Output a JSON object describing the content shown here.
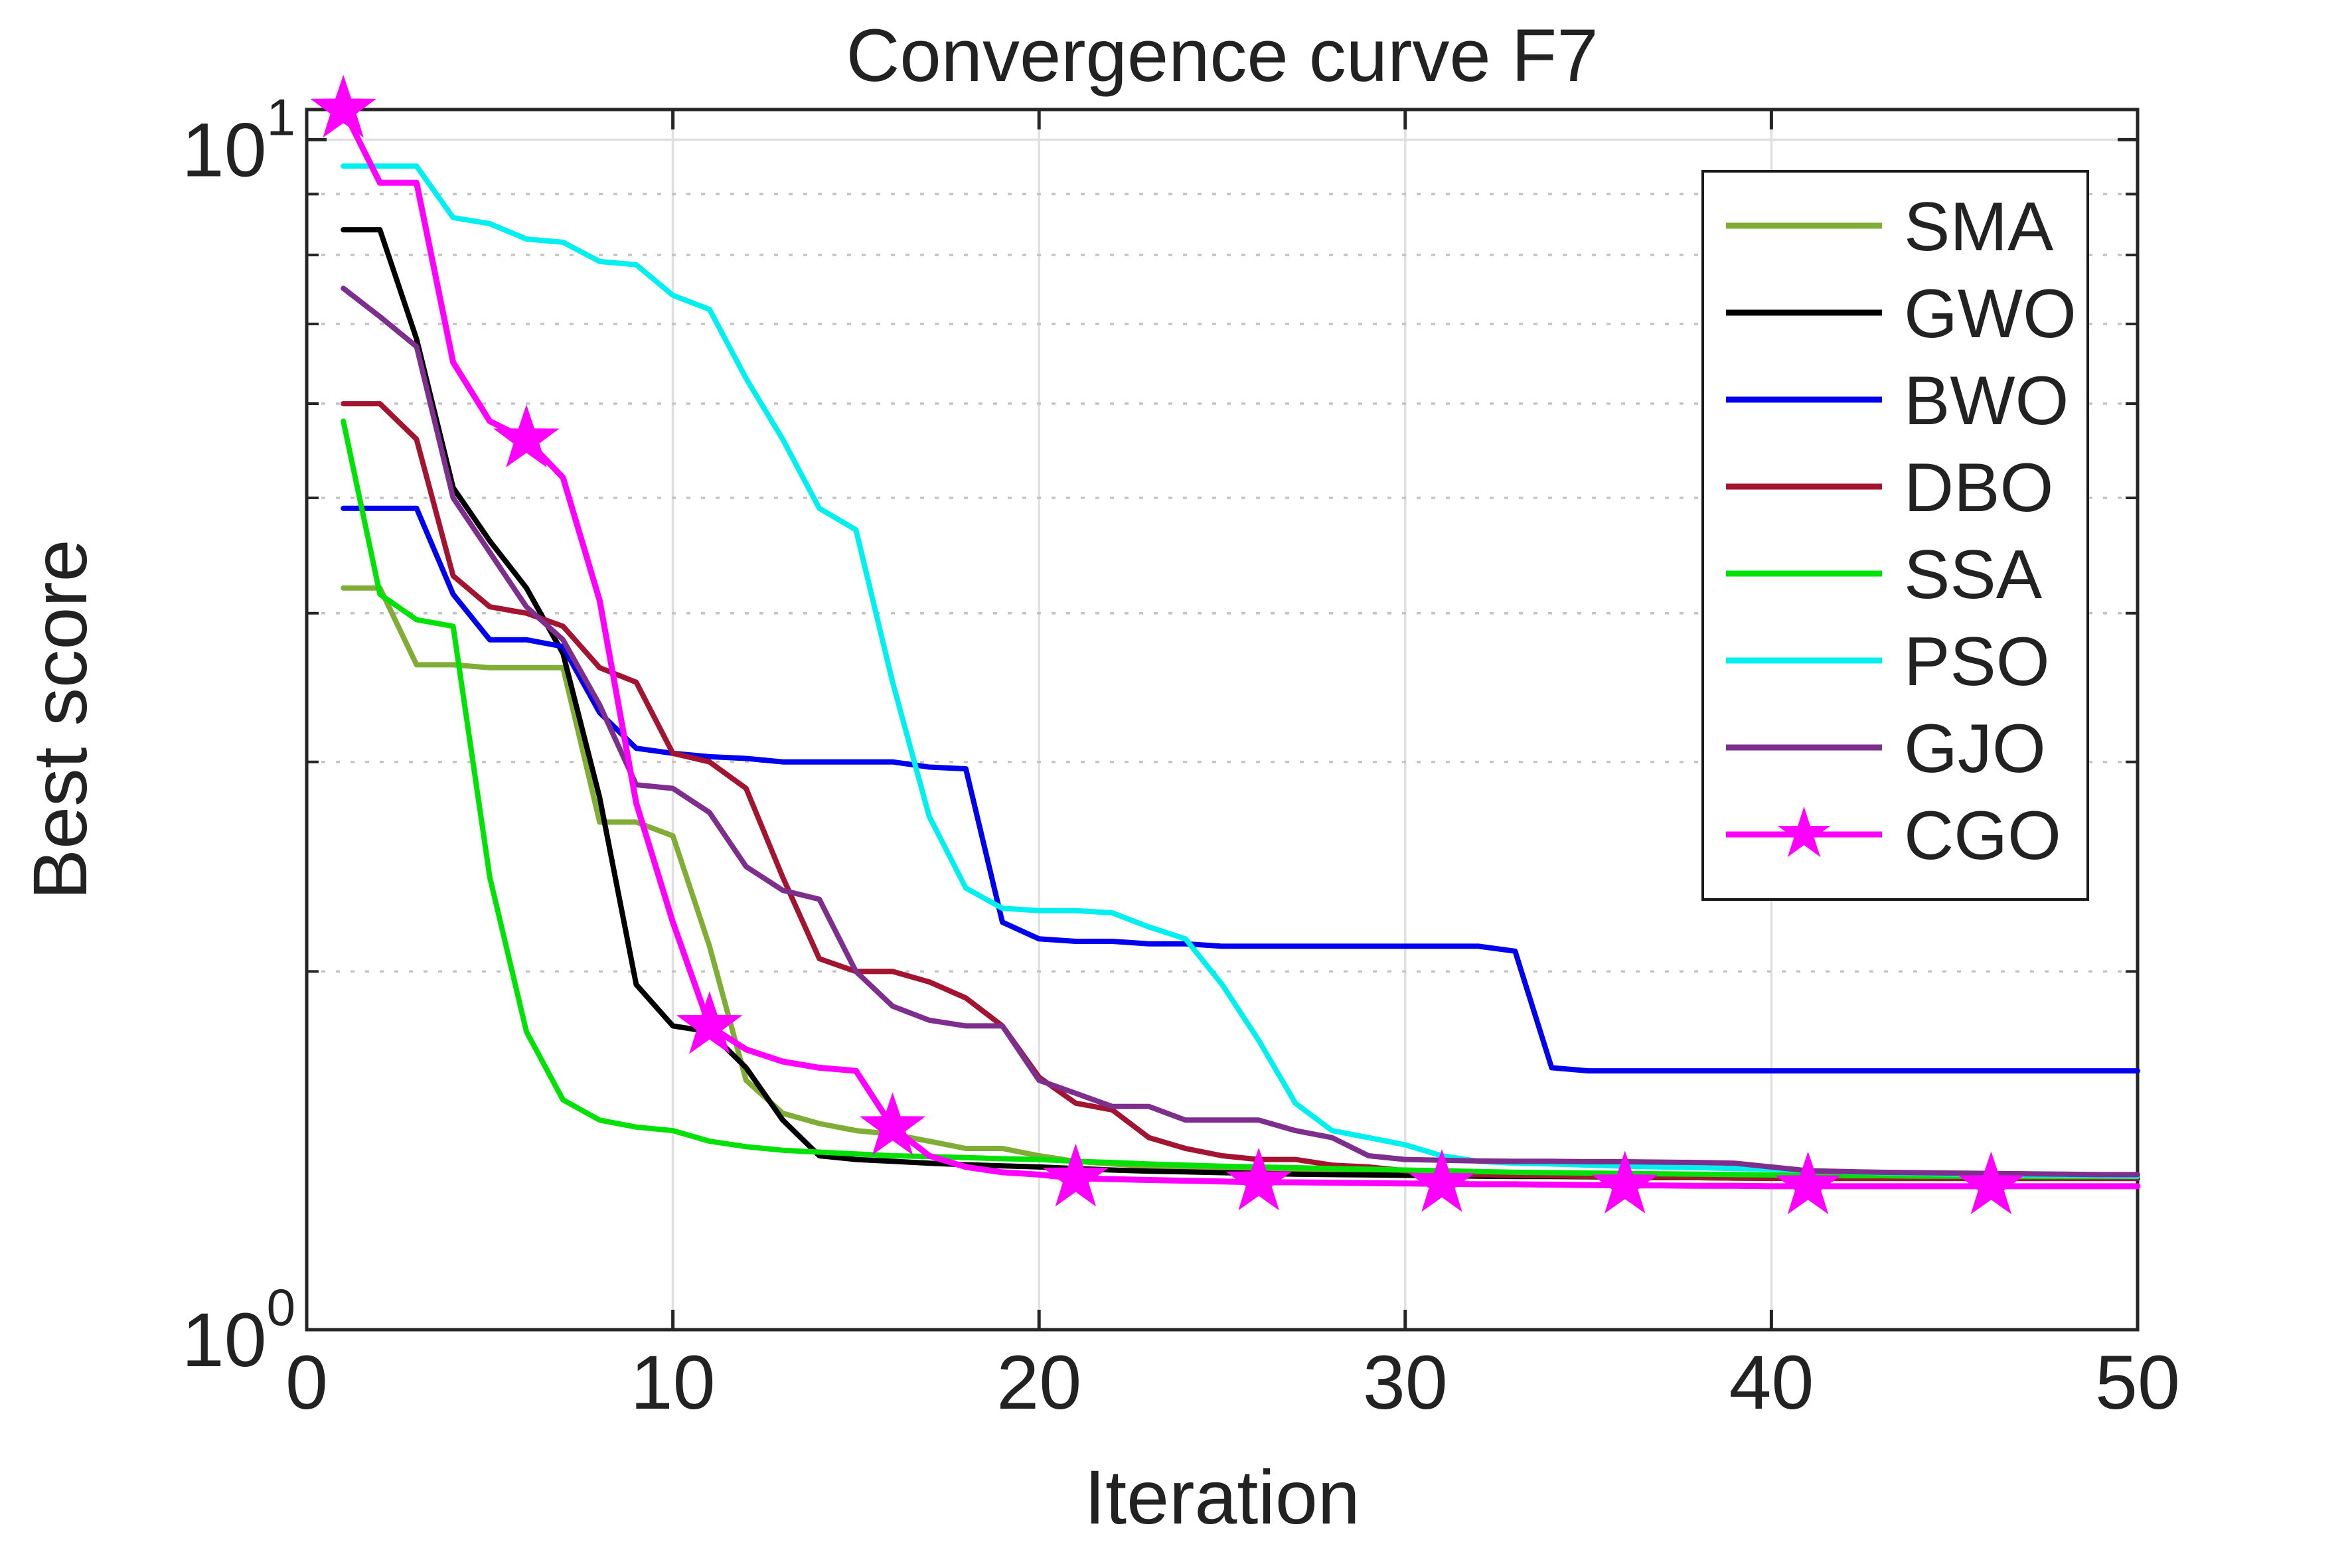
{
  "title": "Convergence curve F7",
  "axes": {
    "xlabel": "Iteration",
    "ylabel": "Best score",
    "x_ticks": [
      0,
      10,
      20,
      30,
      40,
      50
    ],
    "y_tick_labels": [
      {
        "base": "10",
        "exp": "0",
        "value": 1
      },
      {
        "base": "10",
        "exp": "1",
        "value": 10
      }
    ]
  },
  "legend": {
    "entries": [
      {
        "label": "SMA",
        "color": "#7FAD35",
        "marker": "none"
      },
      {
        "label": "GWO",
        "color": "#000000",
        "marker": "none"
      },
      {
        "label": "BWO",
        "color": "#0000EE",
        "marker": "none"
      },
      {
        "label": "DBO",
        "color": "#A2142F",
        "marker": "none"
      },
      {
        "label": "SSA",
        "color": "#00E106",
        "marker": "none"
      },
      {
        "label": "PSO",
        "color": "#00F0F0",
        "marker": "none"
      },
      {
        "label": "GJO",
        "color": "#7E2F8E",
        "marker": "none"
      },
      {
        "label": "CGO",
        "color": "#FF00FF",
        "marker": "star"
      }
    ]
  },
  "chart_data": {
    "type": "line",
    "title": "Convergence curve F7",
    "xlabel": "Iteration",
    "ylabel": "Best score",
    "xlim": [
      0,
      50
    ],
    "ylim": [
      1,
      10.6
    ],
    "yscale": "log",
    "x_first": 1,
    "x_last": 50,
    "grid": {
      "vertical_major": [
        10,
        20,
        30,
        40
      ],
      "horizontal_major": [
        10
      ],
      "horizontal_minor": [
        2,
        3,
        4,
        5,
        6,
        7,
        8,
        9
      ]
    },
    "legend_position": "upper right",
    "series": [
      {
        "name": "SMA",
        "color": "#7FAD35",
        "marker": "none",
        "values": [
          4.2,
          4.2,
          3.62,
          3.62,
          3.6,
          3.6,
          3.6,
          2.67,
          2.67,
          2.6,
          2.1,
          1.62,
          1.52,
          1.49,
          1.47,
          1.46,
          1.44,
          1.42,
          1.42,
          1.4,
          1.385,
          1.378,
          1.372,
          1.368,
          1.363,
          1.36,
          1.358,
          1.356,
          1.354,
          1.352,
          1.351,
          1.35,
          1.35,
          1.35,
          1.35,
          1.35,
          1.35,
          1.35,
          1.35,
          1.348,
          1.347,
          1.346,
          1.345,
          1.345,
          1.345,
          1.345,
          1.345,
          1.345,
          1.345,
          1.345
        ]
      },
      {
        "name": "GWO",
        "color": "#000000",
        "marker": "none",
        "values": [
          8.4,
          8.4,
          6.8,
          5.1,
          4.6,
          4.2,
          3.7,
          2.8,
          1.95,
          1.8,
          1.78,
          1.66,
          1.5,
          1.4,
          1.39,
          1.385,
          1.38,
          1.376,
          1.373,
          1.37,
          1.366,
          1.362,
          1.359,
          1.357,
          1.355,
          1.353,
          1.351,
          1.35,
          1.349,
          1.348,
          1.347,
          1.346,
          1.345,
          1.345,
          1.344,
          1.343,
          1.342,
          1.342,
          1.341,
          1.341,
          1.34,
          1.34,
          1.34,
          1.34,
          1.34,
          1.34,
          1.34,
          1.34,
          1.34,
          1.34
        ]
      },
      {
        "name": "BWO",
        "color": "#0000EE",
        "marker": "none",
        "values": [
          4.9,
          4.9,
          4.9,
          4.15,
          3.8,
          3.8,
          3.75,
          3.3,
          3.08,
          3.05,
          3.03,
          3.02,
          3.0,
          3.0,
          3.0,
          3.0,
          2.97,
          2.96,
          2.2,
          2.13,
          2.12,
          2.12,
          2.11,
          2.11,
          2.1,
          2.1,
          2.1,
          2.1,
          2.1,
          2.1,
          2.1,
          2.1,
          2.08,
          1.66,
          1.65,
          1.65,
          1.65,
          1.65,
          1.65,
          1.65,
          1.65,
          1.65,
          1.65,
          1.65,
          1.65,
          1.65,
          1.65,
          1.65,
          1.65,
          1.65
        ]
      },
      {
        "name": "DBO",
        "color": "#A2142F",
        "marker": "none",
        "values": [
          6.0,
          6.0,
          5.6,
          4.3,
          4.05,
          4.0,
          3.9,
          3.6,
          3.5,
          3.05,
          3.0,
          2.85,
          2.4,
          2.05,
          2.0,
          2.0,
          1.96,
          1.9,
          1.8,
          1.63,
          1.55,
          1.53,
          1.45,
          1.42,
          1.4,
          1.39,
          1.39,
          1.375,
          1.37,
          1.36,
          1.352,
          1.35,
          1.348,
          1.347,
          1.345,
          1.344,
          1.343,
          1.342,
          1.341,
          1.34,
          1.34,
          1.34,
          1.34,
          1.34,
          1.34,
          1.34,
          1.34,
          1.34,
          1.34,
          1.34
        ]
      },
      {
        "name": "SSA",
        "color": "#00E106",
        "marker": "none",
        "values": [
          5.8,
          4.15,
          3.95,
          3.9,
          2.4,
          1.78,
          1.56,
          1.5,
          1.48,
          1.47,
          1.44,
          1.425,
          1.415,
          1.41,
          1.405,
          1.4,
          1.398,
          1.395,
          1.392,
          1.39,
          1.385,
          1.382,
          1.378,
          1.375,
          1.372,
          1.37,
          1.368,
          1.366,
          1.364,
          1.362,
          1.36,
          1.358,
          1.356,
          1.355,
          1.354,
          1.353,
          1.352,
          1.351,
          1.35,
          1.349,
          1.348,
          1.347,
          1.347,
          1.346,
          1.346,
          1.345,
          1.345,
          1.345,
          1.345,
          1.345
        ]
      },
      {
        "name": "PSO",
        "color": "#00F0F0",
        "marker": "none",
        "values": [
          9.5,
          9.5,
          9.5,
          8.6,
          8.5,
          8.25,
          8.2,
          7.9,
          7.85,
          7.4,
          7.2,
          6.3,
          5.6,
          4.9,
          4.7,
          3.5,
          2.7,
          2.35,
          2.26,
          2.25,
          2.25,
          2.24,
          2.18,
          2.13,
          1.95,
          1.75,
          1.55,
          1.47,
          1.45,
          1.43,
          1.4,
          1.385,
          1.38,
          1.378,
          1.375,
          1.372,
          1.37,
          1.368,
          1.366,
          1.364,
          1.36,
          1.357,
          1.355,
          1.353,
          1.351,
          1.35,
          1.349,
          1.348,
          1.347,
          1.346
        ]
      },
      {
        "name": "GJO",
        "color": "#7E2F8E",
        "marker": "none",
        "values": [
          7.5,
          7.1,
          6.7,
          5.0,
          4.5,
          4.05,
          3.8,
          3.35,
          2.87,
          2.85,
          2.72,
          2.45,
          2.34,
          2.3,
          2.0,
          1.87,
          1.82,
          1.8,
          1.8,
          1.62,
          1.58,
          1.54,
          1.54,
          1.5,
          1.5,
          1.5,
          1.47,
          1.45,
          1.4,
          1.39,
          1.388,
          1.386,
          1.385,
          1.385,
          1.384,
          1.384,
          1.383,
          1.382,
          1.38,
          1.37,
          1.36,
          1.358,
          1.356,
          1.355,
          1.354,
          1.353,
          1.352,
          1.351,
          1.35,
          1.35
        ]
      },
      {
        "name": "CGO",
        "color": "#FF00FF",
        "marker": "star",
        "marker_iterations": [
          1,
          6,
          11,
          16,
          21,
          26,
          31,
          36,
          41,
          46
        ],
        "values": [
          10.6,
          9.2,
          9.2,
          6.5,
          5.8,
          5.6,
          5.2,
          4.1,
          2.77,
          2.2,
          1.8,
          1.72,
          1.68,
          1.66,
          1.65,
          1.48,
          1.4,
          1.37,
          1.356,
          1.35,
          1.34,
          1.338,
          1.336,
          1.334,
          1.332,
          1.33,
          1.33,
          1.329,
          1.328,
          1.327,
          1.326,
          1.325,
          1.325,
          1.324,
          1.323,
          1.322,
          1.322,
          1.321,
          1.321,
          1.32,
          1.32,
          1.32,
          1.32,
          1.32,
          1.32,
          1.32,
          1.32,
          1.32,
          1.32,
          1.32
        ]
      }
    ]
  }
}
